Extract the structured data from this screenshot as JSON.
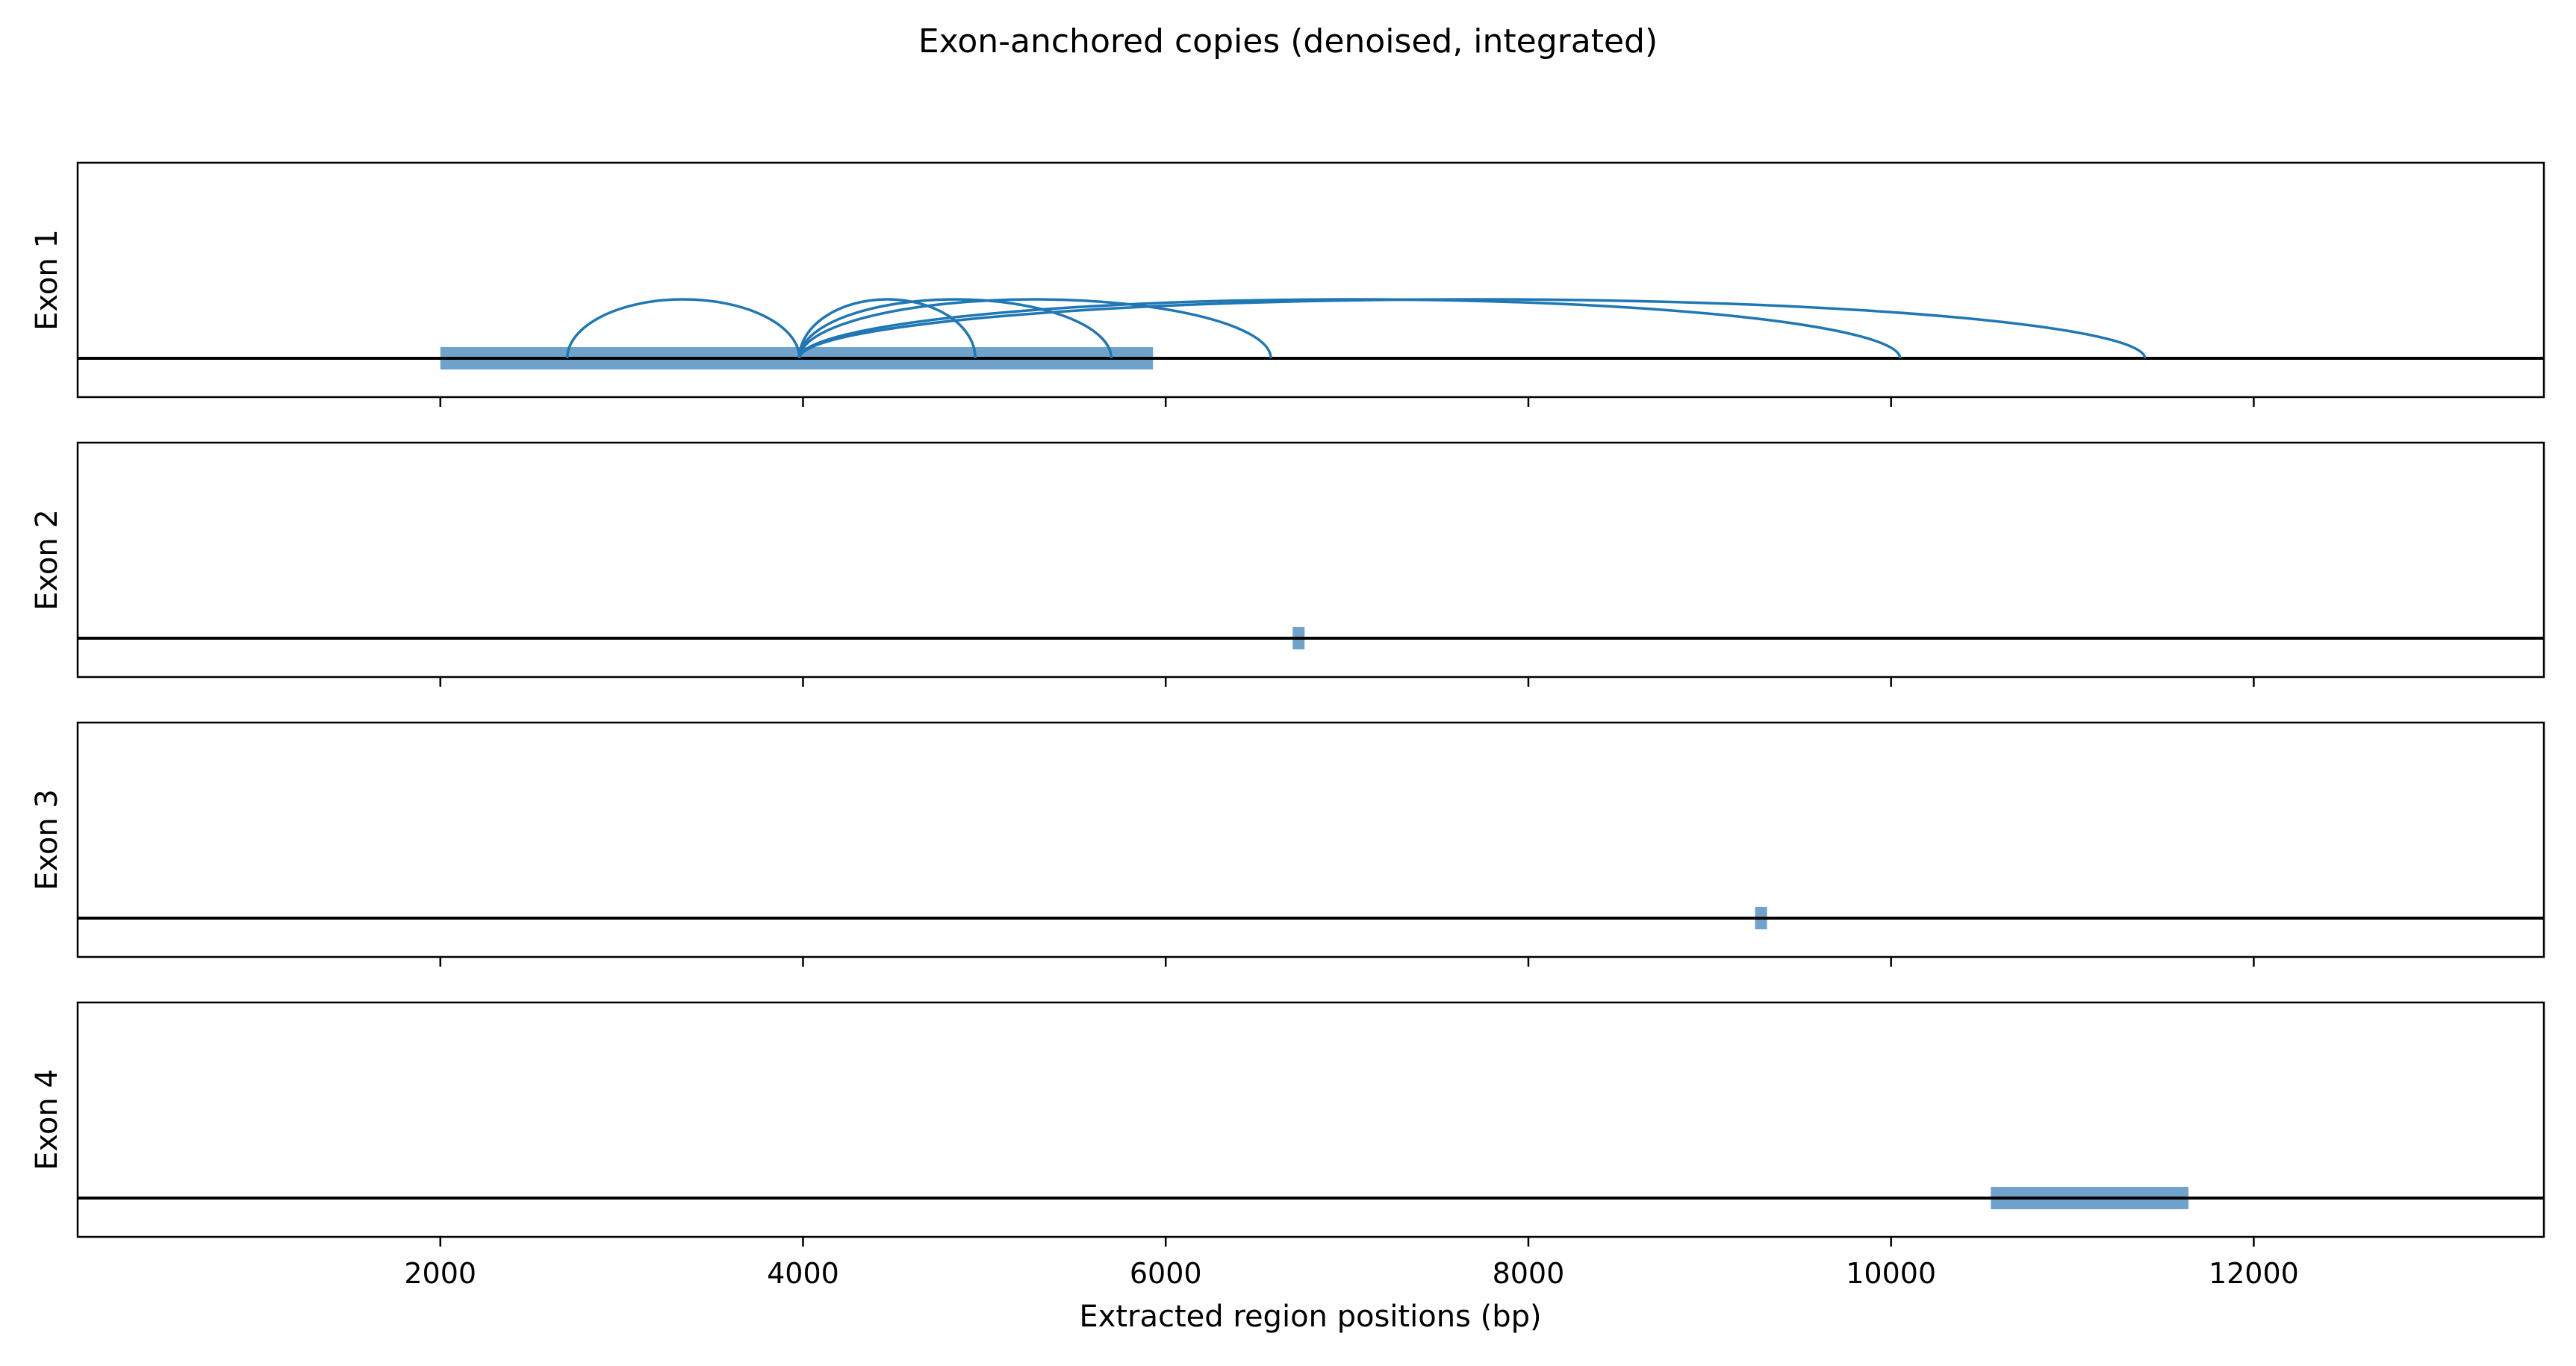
{
  "chart_data": {
    "type": "arc",
    "title": "Exon-anchored copies (denoised, integrated)",
    "xlabel": "Extracted region positions (bp)",
    "xlim": [
      0,
      13600
    ],
    "x_ticks": [
      2000,
      4000,
      6000,
      8000,
      10000,
      12000
    ],
    "x_tick_labels": [
      "2000",
      "4000",
      "6000",
      "8000",
      "10000",
      "12000"
    ],
    "colors": {
      "segment": "#6fa3cc",
      "arc": "#1f77b4",
      "baseline": "#000000"
    },
    "panels": [
      {
        "label": "Exon 1",
        "segments": [
          [
            2000,
            5930
          ]
        ],
        "arcs": [
          {
            "start": 2700,
            "end": 3980,
            "height": 1.0
          },
          {
            "start": 3980,
            "end": 4950,
            "height": 1.0
          },
          {
            "start": 3980,
            "end": 5700,
            "height": 1.0
          },
          {
            "start": 3980,
            "end": 6580,
            "height": 1.0
          },
          {
            "start": 3980,
            "end": 10050,
            "height": 1.0
          },
          {
            "start": 3980,
            "end": 11400,
            "height": 1.0
          }
        ]
      },
      {
        "label": "Exon 2",
        "segments": [
          [
            6700,
            6760
          ]
        ],
        "arcs": []
      },
      {
        "label": "Exon 3",
        "segments": [
          [
            9250,
            9310
          ]
        ],
        "arcs": []
      },
      {
        "label": "Exon 4",
        "segments": [
          [
            10550,
            11640
          ]
        ],
        "arcs": []
      }
    ]
  }
}
